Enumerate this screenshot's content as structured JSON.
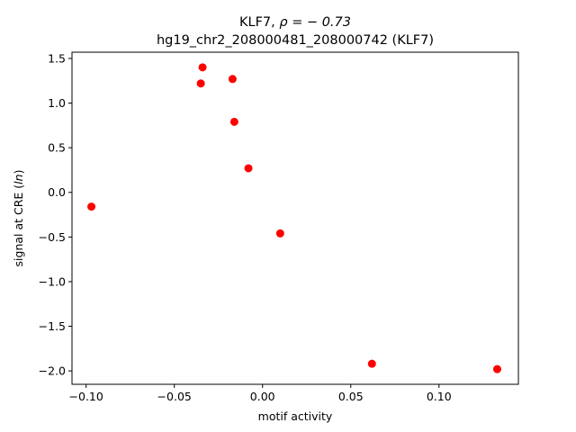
{
  "chart_data": {
    "type": "scatter",
    "title_line1_prefix": "KLF7, ",
    "title_line1_math": "ρ = − 0.73",
    "title_line2": "hg19_chr2_208000481_208000742 (KLF7)",
    "xlabel": "motif activity",
    "ylabel_prefix": "signal at CRE (",
    "ylabel_math": "ln",
    "ylabel_suffix": ")",
    "xlim": [
      -0.108,
      0.145
    ],
    "ylim": [
      -2.15,
      1.57
    ],
    "xticks": [
      -0.1,
      -0.05,
      0.0,
      0.05,
      0.1
    ],
    "xtick_labels": [
      "−0.10",
      "−0.05",
      "0.00",
      "0.05",
      "0.10"
    ],
    "yticks": [
      -2.0,
      -1.5,
      -1.0,
      -0.5,
      0.0,
      0.5,
      1.0,
      1.5
    ],
    "ytick_labels": [
      "−2.0",
      "−1.5",
      "−1.0",
      "−0.5",
      "0.0",
      "0.5",
      "1.0",
      "1.5"
    ],
    "grid": false,
    "marker_color": "#ff0000",
    "x": [
      -0.097,
      -0.034,
      -0.035,
      -0.017,
      -0.016,
      -0.008,
      0.01,
      0.062,
      0.133
    ],
    "y": [
      -0.16,
      1.4,
      1.22,
      1.27,
      0.79,
      0.27,
      -0.46,
      -1.92,
      -1.98
    ]
  }
}
